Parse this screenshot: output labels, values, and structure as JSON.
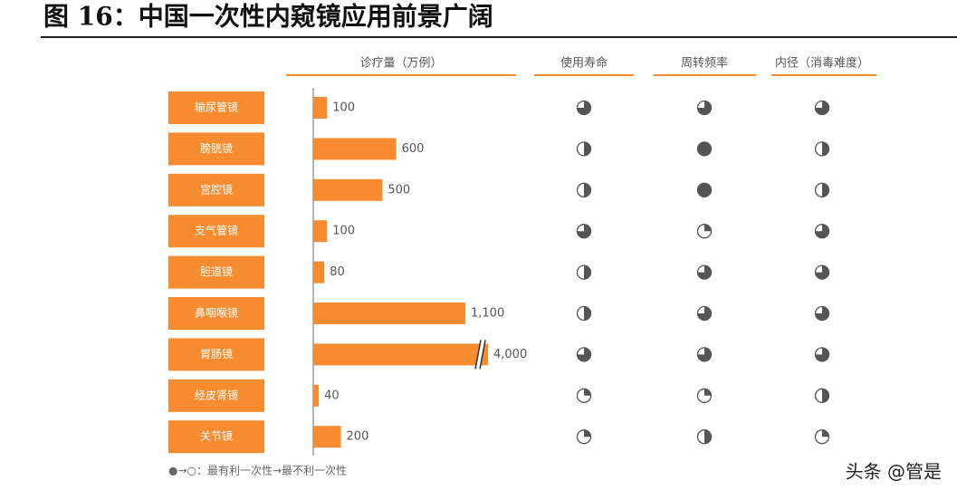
{
  "chart_data": {
    "type": "bar",
    "title": "图 16：中国一次性内窥镜应用前景广阔",
    "value_header": "诊疗量（万例）",
    "categories": [
      "输尿管镜",
      "膀胱镜",
      "宫腔镜",
      "支气管镜",
      "胆道镜",
      "鼻咽喉镜",
      "胃肠镜",
      "经皮肾镜",
      "关节镜"
    ],
    "values": [
      100,
      600,
      500,
      100,
      80,
      1100,
      4000,
      40,
      200
    ],
    "value_labels": [
      "100",
      "600",
      "500",
      "100",
      "80",
      "1,100",
      "4,000",
      "40",
      "200"
    ],
    "color": "#f68b2f",
    "rating_columns": [
      {
        "name": "使用寿命",
        "values": [
          0.75,
          0.5,
          0.5,
          0.75,
          0.5,
          0.5,
          0.75,
          0.25,
          0.25
        ]
      },
      {
        "name": "周转频率",
        "values": [
          0.75,
          1,
          1,
          0.25,
          0.75,
          0.75,
          0.75,
          0.25,
          0.5
        ]
      },
      {
        "name": "内径（消毒难度）",
        "values": [
          0.75,
          0.5,
          0.5,
          0.75,
          0.75,
          0.75,
          0.75,
          0.5,
          0.25
        ]
      }
    ],
    "legend": "●→○：最有利一次性→最不利一次性",
    "watermark": "头条 @管是"
  }
}
